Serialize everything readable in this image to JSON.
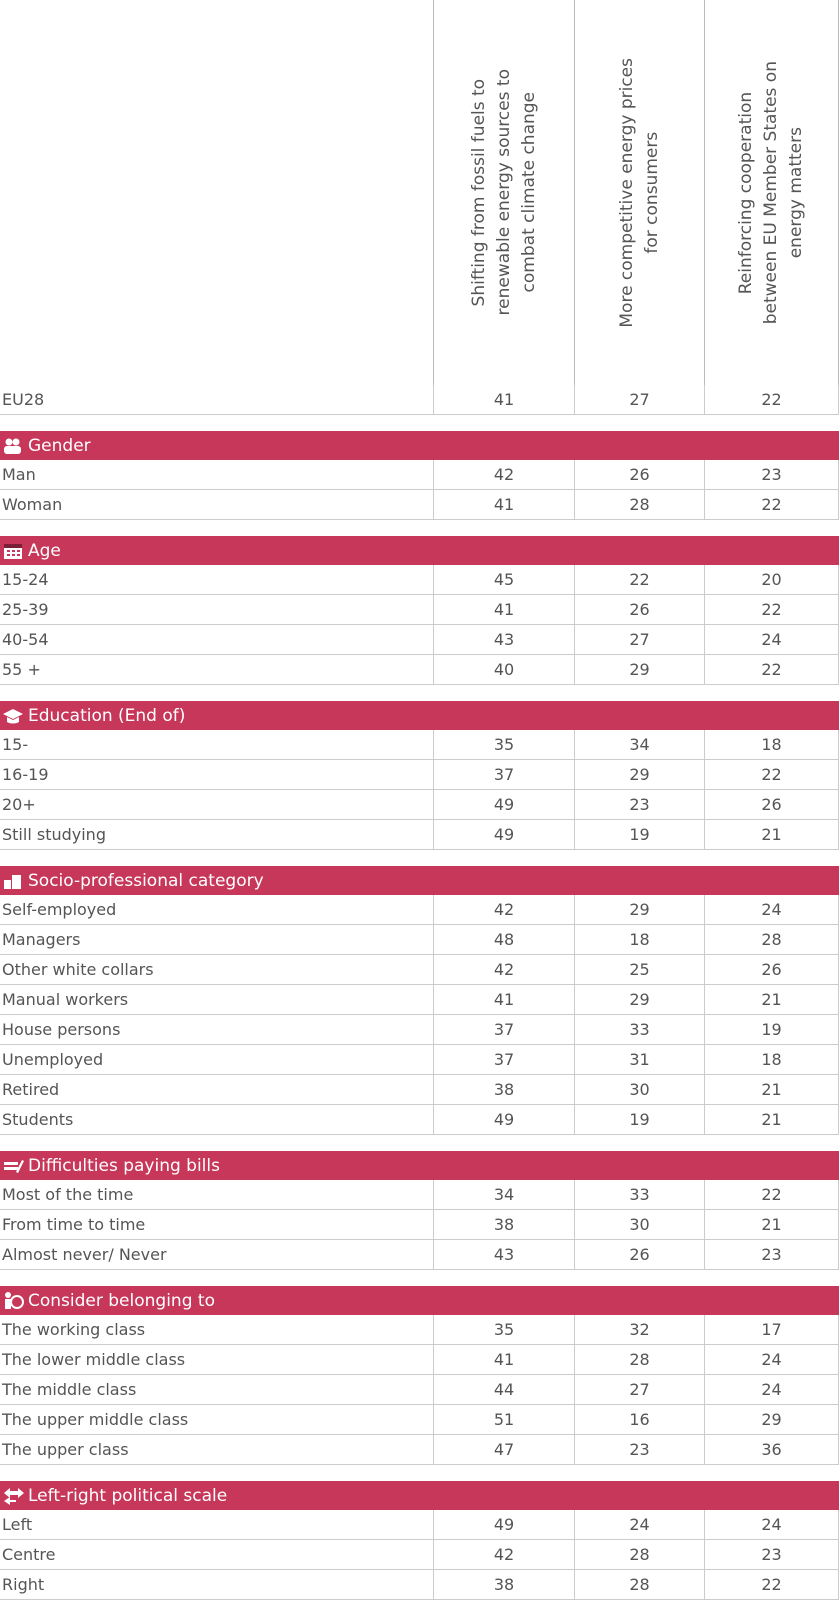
{
  "header": {
    "columns": [
      [
        "Shifting from fossil fuels to",
        "renewable energy sources to",
        "combat climate change"
      ],
      [
        "More competitive energy prices",
        "for consumers"
      ],
      [
        "Reinforcing cooperation",
        "between EU Member States on",
        "energy matters"
      ]
    ]
  },
  "total": {
    "label": "EU28",
    "values": [
      41,
      27,
      22
    ]
  },
  "groups": [
    {
      "title": "Gender",
      "rows": [
        {
          "label": "Man",
          "values": [
            42,
            26,
            23
          ]
        },
        {
          "label": "Woman",
          "values": [
            41,
            28,
            22
          ]
        }
      ]
    },
    {
      "title": "Age",
      "rows": [
        {
          "label": "15-24",
          "values": [
            45,
            22,
            20
          ]
        },
        {
          "label": "25-39",
          "values": [
            41,
            26,
            22
          ]
        },
        {
          "label": "40-54",
          "values": [
            43,
            27,
            24
          ]
        },
        {
          "label": "55 +",
          "values": [
            40,
            29,
            22
          ]
        }
      ]
    },
    {
      "title": "Education (End of)",
      "rows": [
        {
          "label": "15-",
          "values": [
            35,
            34,
            18
          ]
        },
        {
          "label": "16-19",
          "values": [
            37,
            29,
            22
          ]
        },
        {
          "label": "20+",
          "values": [
            49,
            23,
            26
          ]
        },
        {
          "label": "Still studying",
          "values": [
            49,
            19,
            21
          ]
        }
      ]
    },
    {
      "title": "Socio-professional category",
      "rows": [
        {
          "label": "Self-employed",
          "values": [
            42,
            29,
            24
          ]
        },
        {
          "label": "Managers",
          "values": [
            48,
            18,
            28
          ]
        },
        {
          "label": "Other white collars",
          "values": [
            42,
            25,
            26
          ]
        },
        {
          "label": "Manual workers",
          "values": [
            41,
            29,
            21
          ]
        },
        {
          "label": "House persons",
          "values": [
            37,
            33,
            19
          ]
        },
        {
          "label": "Unemployed",
          "values": [
            37,
            31,
            18
          ]
        },
        {
          "label": "Retired",
          "values": [
            38,
            30,
            21
          ]
        },
        {
          "label": "Students",
          "values": [
            49,
            19,
            21
          ]
        }
      ]
    },
    {
      "title": "Difficulties paying bills",
      "rows": [
        {
          "label": "Most of the time",
          "values": [
            34,
            33,
            22
          ]
        },
        {
          "label": "From time to time",
          "values": [
            38,
            30,
            21
          ]
        },
        {
          "label": "Almost never/ Never",
          "values": [
            43,
            26,
            23
          ]
        }
      ]
    },
    {
      "title": "Consider belonging to",
      "rows": [
        {
          "label": "The working class",
          "values": [
            35,
            32,
            17
          ]
        },
        {
          "label": "The lower middle class",
          "values": [
            41,
            28,
            24
          ]
        },
        {
          "label": "The middle class",
          "values": [
            44,
            27,
            24
          ]
        },
        {
          "label": "The upper middle class",
          "values": [
            51,
            16,
            29
          ]
        },
        {
          "label": "The upper class",
          "values": [
            47,
            23,
            36
          ]
        }
      ]
    },
    {
      "title": "Left-right political scale",
      "rows": [
        {
          "label": "Left",
          "values": [
            49,
            24,
            24
          ]
        },
        {
          "label": "Centre",
          "values": [
            42,
            28,
            23
          ]
        },
        {
          "label": "Right",
          "values": [
            38,
            28,
            22
          ]
        }
      ]
    }
  ]
}
